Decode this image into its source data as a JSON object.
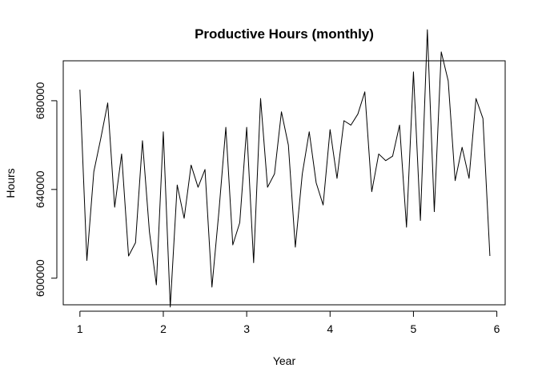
{
  "chart_data": {
    "type": "line",
    "title": "Productive Hours (monthly)",
    "xlabel": "Year",
    "ylabel": "Hours",
    "xlim": [
      0.8,
      6.1
    ],
    "ylim": [
      588000,
      698000
    ],
    "x_ticks": [
      1,
      2,
      3,
      4,
      5,
      6
    ],
    "x_tick_labels": [
      "1",
      "2",
      "3",
      "4",
      "5",
      "6"
    ],
    "y_ticks": [
      600000,
      640000,
      680000
    ],
    "y_tick_labels": [
      "600000",
      "640000",
      "680000"
    ],
    "grid": false,
    "legend": "none",
    "line_color": "#000000",
    "series": [
      {
        "x": [
          1.0,
          1.0833,
          1.1667,
          1.25,
          1.3333,
          1.4167,
          1.5,
          1.5833,
          1.6667,
          1.75,
          1.8333,
          1.9167,
          2.0,
          2.0833,
          2.1667,
          2.25,
          2.3333,
          2.4167,
          2.5,
          2.5833,
          2.6667,
          2.75,
          2.8333,
          2.9167,
          3.0,
          3.0833,
          3.1667,
          3.25,
          3.3333,
          3.4167,
          3.5,
          3.5833,
          3.6667,
          3.75,
          3.8333,
          3.9167,
          4.0,
          4.0833,
          4.1667,
          4.25,
          4.3333,
          4.4167,
          4.5,
          4.5833,
          4.6667,
          4.75,
          4.8333,
          4.9167,
          5.0,
          5.0833,
          5.1667,
          5.25,
          5.3333,
          5.4167,
          5.5,
          5.5833,
          5.6667,
          5.75,
          5.8333,
          5.9167
        ],
        "values": [
          685000,
          608000,
          648000,
          663000,
          679000,
          632000,
          656000,
          610000,
          616000,
          662000,
          621000,
          597000,
          666000,
          587000,
          642000,
          627000,
          651000,
          641000,
          649000,
          596000,
          630000,
          668000,
          615000,
          625000,
          668000,
          607000,
          681000,
          641000,
          647000,
          675000,
          660000,
          614000,
          647000,
          666000,
          643000,
          633000,
          667000,
          645000,
          671000,
          669000,
          674000,
          684000,
          639000,
          656000,
          653000,
          655000,
          669000,
          623000,
          693000,
          626000,
          712000,
          630000,
          702000,
          689000,
          644000,
          659000,
          645000,
          681000,
          672000,
          610000
        ]
      }
    ]
  }
}
